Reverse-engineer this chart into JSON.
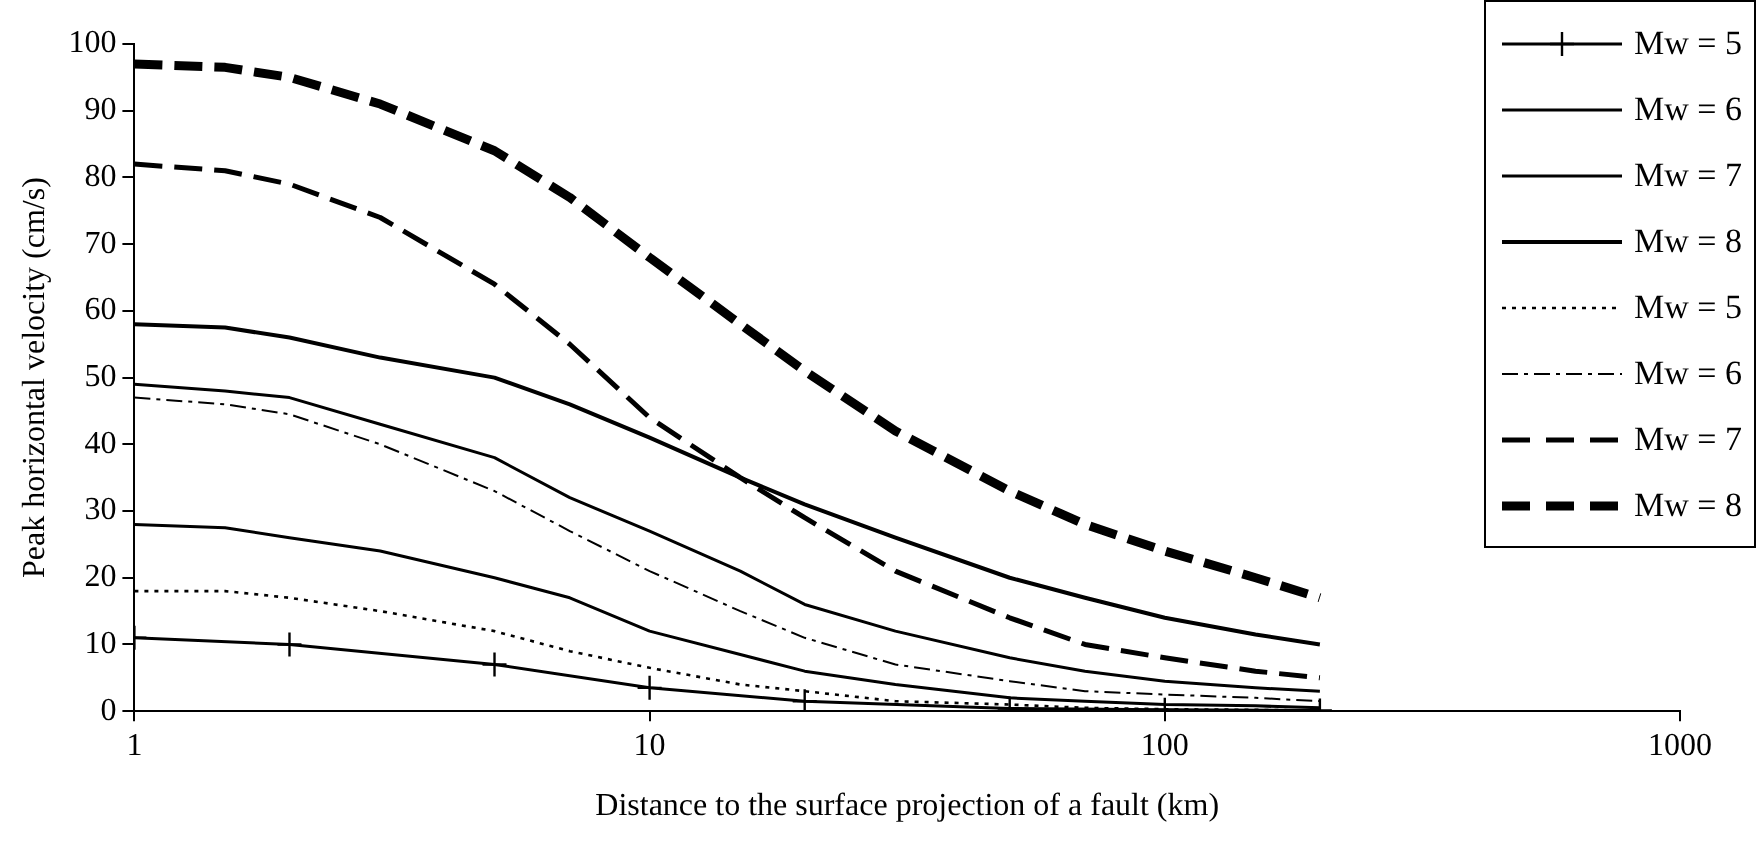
{
  "chart_data": {
    "type": "line",
    "xlabel": "Distance to the surface projection of a fault (km)",
    "ylabel": "Peak horizontal velocity (cm/s)",
    "log": "x",
    "xlim": [
      1,
      1000
    ],
    "xticks": [
      1,
      10,
      100,
      1000
    ],
    "ylim": [
      0,
      100
    ],
    "yticks": [
      0,
      10,
      20,
      30,
      40,
      50,
      60,
      70,
      80,
      90,
      100
    ],
    "grid": false,
    "legend": "top right",
    "x": [
      1,
      1.5,
      2,
      3,
      5,
      7,
      10,
      15,
      20,
      30,
      50,
      70,
      100,
      150,
      200
    ],
    "series": [
      {
        "name": "Mw = 5",
        "color": "#000000",
        "marker": "cross",
        "line_style": "solid",
        "x": [
          1,
          2,
          5,
          10,
          20,
          50,
          100,
          200
        ],
        "values": [
          11,
          10,
          7,
          3.5,
          1.5,
          0.4,
          0.2,
          0.1
        ]
      },
      {
        "name": "Mw = 6",
        "color": "#000000",
        "marker": "none",
        "line_style": "solid",
        "values": [
          28,
          27.5,
          26,
          24,
          20,
          17,
          12,
          8.5,
          6,
          4,
          2,
          1.5,
          1,
          0.8,
          0.5
        ]
      },
      {
        "name": "Mw = 7",
        "color": "#000000",
        "marker": "none",
        "line_style": "solid",
        "values": [
          49,
          48,
          47,
          43,
          38,
          32,
          27,
          21,
          16,
          12,
          8,
          6,
          4.5,
          3.5,
          3
        ]
      },
      {
        "name": "Mw = 8",
        "color": "#000000",
        "marker": "none",
        "line_style": "solid",
        "values": [
          58,
          57.5,
          56,
          53,
          50,
          46,
          41,
          35,
          31,
          26,
          20,
          17,
          14,
          11.5,
          10
        ]
      },
      {
        "name": "Mw = 5",
        "color": "#000000",
        "marker": "none",
        "line_style": "dotted",
        "values": [
          18,
          18,
          17,
          15,
          12,
          9,
          6.5,
          4,
          3,
          1.5,
          1,
          0.5,
          0.3,
          0.2,
          0.1
        ]
      },
      {
        "name": "Mw = 6",
        "color": "#000000",
        "marker": "none",
        "line_style": "dashdot",
        "values": [
          47,
          46,
          44.5,
          40,
          33,
          27,
          21,
          15,
          11,
          7,
          4.5,
          3,
          2.5,
          2,
          1.5
        ]
      },
      {
        "name": "Mw = 7",
        "color": "#000000",
        "marker": "none",
        "line_style": "dashed",
        "values": [
          82,
          81,
          79,
          74,
          64,
          55,
          44,
          35,
          29,
          21,
          14,
          10,
          8,
          6,
          5
        ]
      },
      {
        "name": "Mw = 8",
        "color": "#000000",
        "marker": "none",
        "line_style": "dashed",
        "values": [
          97,
          96.5,
          95,
          91,
          84,
          77,
          68,
          58,
          51,
          42,
          33,
          28,
          24,
          20,
          17
        ]
      }
    ]
  }
}
